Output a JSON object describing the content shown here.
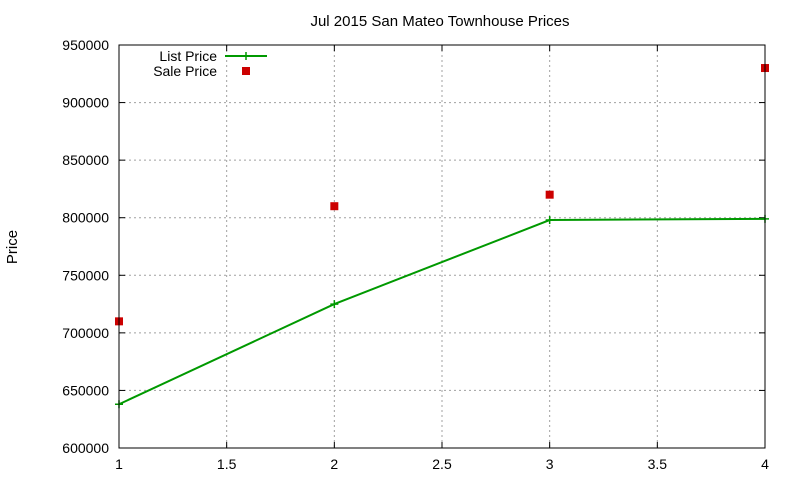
{
  "chart_data": {
    "type": "line",
    "title": "Jul 2015 San Mateo Townhouse Prices",
    "xlabel": "",
    "ylabel": "Price",
    "xlim": [
      1,
      4
    ],
    "ylim": [
      600000,
      950000
    ],
    "x_ticks": [
      1,
      1.5,
      2,
      2.5,
      3,
      3.5,
      4
    ],
    "y_ticks": [
      600000,
      650000,
      700000,
      750000,
      800000,
      850000,
      900000,
      950000
    ],
    "grid": true,
    "legend_position": "top-left",
    "series": [
      {
        "name": "List Price",
        "style": "linespoints",
        "color": "#009900",
        "x": [
          1,
          2,
          3,
          4
        ],
        "y": [
          638000,
          725000,
          798000,
          799000
        ]
      },
      {
        "name": "Sale Price",
        "style": "points",
        "color": "#cc0000",
        "x": [
          1,
          2,
          3,
          4
        ],
        "y": [
          710000,
          810000,
          820000,
          930000
        ]
      }
    ]
  }
}
